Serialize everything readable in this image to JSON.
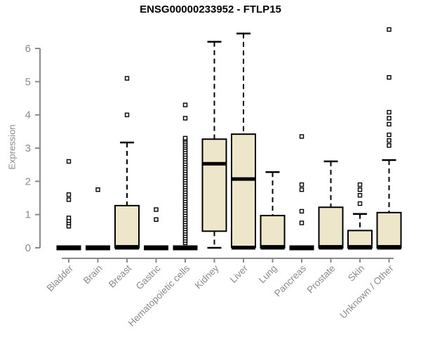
{
  "chart_data": {
    "type": "boxplot",
    "title": "ENSG00000233952 - FTLP15",
    "ylabel": "Expression",
    "ylim": [
      0,
      6
    ],
    "yticks": [
      0,
      1,
      2,
      3,
      4,
      5,
      6
    ],
    "grid": false,
    "categories": [
      "Bladder",
      "Brain",
      "Breast",
      "Gastric",
      "Hematopoietic cells",
      "Kidney",
      "Liver",
      "Lung",
      "Pancreas",
      "Prostate",
      "Skin",
      "Unknown / Other"
    ],
    "series": [
      {
        "name": "Bladder",
        "q1": 0,
        "median": 0,
        "q3": 0,
        "whisker_low": 0,
        "whisker_high": 0,
        "outliers": [
          0.65,
          0.75,
          0.82,
          0.9,
          1.45,
          1.6,
          2.6
        ]
      },
      {
        "name": "Brain",
        "q1": 0,
        "median": 0,
        "q3": 0,
        "whisker_low": 0,
        "whisker_high": 0,
        "outliers": [
          1.75
        ]
      },
      {
        "name": "Breast",
        "q1": 0,
        "median": 0.03,
        "q3": 1.27,
        "whisker_low": 0,
        "whisker_high": 3.17,
        "outliers": [
          4.0,
          5.1
        ]
      },
      {
        "name": "Gastric",
        "q1": 0,
        "median": 0,
        "q3": 0,
        "whisker_low": 0,
        "whisker_high": 0,
        "outliers": [
          0.85,
          1.15
        ]
      },
      {
        "name": "Hematopoietic cells",
        "q1": 0,
        "median": 0,
        "q3": 0,
        "whisker_low": 0,
        "whisker_high": 0,
        "outliers": [
          0.15,
          0.22,
          0.29,
          0.36,
          0.43,
          0.5,
          0.57,
          0.64,
          0.71,
          0.78,
          0.85,
          0.92,
          0.99,
          1.06,
          1.13,
          1.2,
          1.27,
          1.34,
          1.41,
          1.48,
          1.55,
          1.62,
          1.69,
          1.76,
          1.83,
          1.9,
          1.97,
          2.04,
          2.11,
          2.18,
          2.25,
          2.32,
          2.39,
          2.46,
          2.53,
          2.6,
          2.67,
          2.74,
          2.81,
          2.88,
          2.95,
          3.02,
          3.08,
          3.14,
          3.2,
          3.26,
          3.3,
          3.9,
          4.3
        ]
      },
      {
        "name": "Kidney",
        "q1": 0.5,
        "median": 2.53,
        "q3": 3.27,
        "whisker_low": 0,
        "whisker_high": 6.2,
        "outliers": []
      },
      {
        "name": "Liver",
        "q1": 0.02,
        "median": 2.07,
        "q3": 3.42,
        "whisker_low": 0,
        "whisker_high": 6.45,
        "outliers": []
      },
      {
        "name": "Lung",
        "q1": 0,
        "median": 0.03,
        "q3": 0.97,
        "whisker_low": 0,
        "whisker_high": 2.28,
        "outliers": []
      },
      {
        "name": "Pancreas",
        "q1": 0,
        "median": 0,
        "q3": 0,
        "whisker_low": 0,
        "whisker_high": 0,
        "outliers": [
          0.75,
          1.1,
          1.75,
          1.9,
          3.35
        ]
      },
      {
        "name": "Prostate",
        "q1": 0,
        "median": 0.03,
        "q3": 1.22,
        "whisker_low": 0,
        "whisker_high": 2.6,
        "outliers": []
      },
      {
        "name": "Skin",
        "q1": 0,
        "median": 0.03,
        "q3": 0.52,
        "whisker_low": 0,
        "whisker_high": 1.02,
        "outliers": [
          1.33,
          1.58,
          1.75,
          1.9
        ]
      },
      {
        "name": "Unknown / Other",
        "q1": 0,
        "median": 0.03,
        "q3": 1.06,
        "whisker_low": 0,
        "whisker_high": 2.64,
        "outliers": [
          3.08,
          3.23,
          3.4,
          3.72,
          3.9,
          4.08,
          5.13,
          6.57
        ]
      }
    ],
    "colors": {
      "box_fill": "#ede6ca",
      "box_stroke": "#000000",
      "median": "#000000",
      "whisker": "#000000",
      "outlier_stroke": "#000000",
      "axis": "#8a8a8a",
      "tick_text": "#8a8a8a",
      "title_text": "#000000"
    },
    "legend": null
  }
}
